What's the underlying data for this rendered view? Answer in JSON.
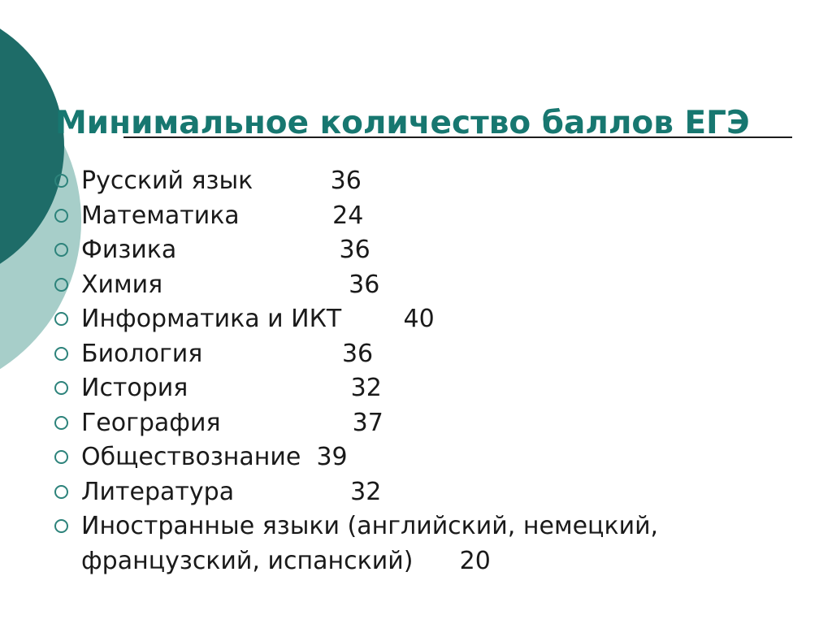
{
  "slide": {
    "title": "Минимальное количество баллов ЕГЭ",
    "list": {
      "items": [
        {
          "subject": "Русский язык",
          "gap": "          ",
          "score": "36"
        },
        {
          "subject": "Математика",
          "gap": "            ",
          "score": "24"
        },
        {
          "subject": "Физика",
          "gap": "                     ",
          "score": "36"
        },
        {
          "subject": "Химия",
          "gap": "                        ",
          "score": "36"
        },
        {
          "subject": "Информатика и ИКТ",
          "gap": "        ",
          "score": "40"
        },
        {
          "subject": "Биология",
          "gap": "                  ",
          "score": "36"
        },
        {
          "subject": "История",
          "gap": "                     ",
          "score": "32"
        },
        {
          "subject": "География",
          "gap": "                 ",
          "score": "37"
        },
        {
          "subject": "Обществознание",
          "gap": "  ",
          "score": "39"
        },
        {
          "subject": "Литература",
          "gap": "               ",
          "score": "32"
        },
        {
          "subject": "Иностранные языки (английский, немецкий, французский, испанский)",
          "gap": "      ",
          "score": "20"
        }
      ]
    }
  },
  "decor": {
    "background_color": "#FFFFFF",
    "dark_circle_color": "#1E6C68",
    "light_circle_color": "#A7CEC9",
    "bullet_outline_color": "#2D837B",
    "title_color": "#177770",
    "rule_color": "#1C1C1C",
    "text_color": "#1A1A1A"
  }
}
